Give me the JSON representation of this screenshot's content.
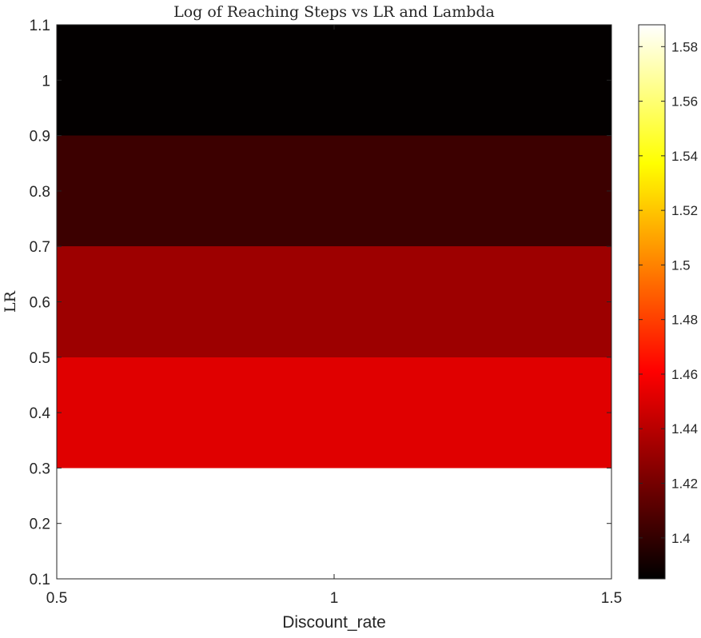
{
  "chart_data": {
    "type": "heatmap",
    "title": "Log of Reaching Steps vs LR and Lambda",
    "xlabel": "Discount_rate",
    "ylabel": "LR",
    "xlim": [
      0.5,
      1.5
    ],
    "ylim": [
      0.1,
      1.1
    ],
    "xticks": [
      "0.5",
      "1",
      "1.5"
    ],
    "yticks": [
      "0.1",
      "0.2",
      "0.3",
      "0.4",
      "0.5",
      "0.6",
      "0.7",
      "0.8",
      "0.9",
      "1",
      "1.1"
    ],
    "x": [
      1
    ],
    "y": [
      0.2,
      0.4,
      0.6,
      0.8,
      1.0
    ],
    "cell_size": {
      "x": 1,
      "y": 0.2
    },
    "z": [
      [
        1.588
      ],
      [
        1.452
      ],
      [
        1.432
      ],
      [
        1.403
      ],
      [
        1.386
      ]
    ],
    "colormap": "hot",
    "colorbar": {
      "range": [
        1.385,
        1.588
      ],
      "ticks": [
        "1.4",
        "1.42",
        "1.44",
        "1.46",
        "1.48",
        "1.5",
        "1.52",
        "1.54",
        "1.56",
        "1.58"
      ]
    },
    "grid": false
  }
}
